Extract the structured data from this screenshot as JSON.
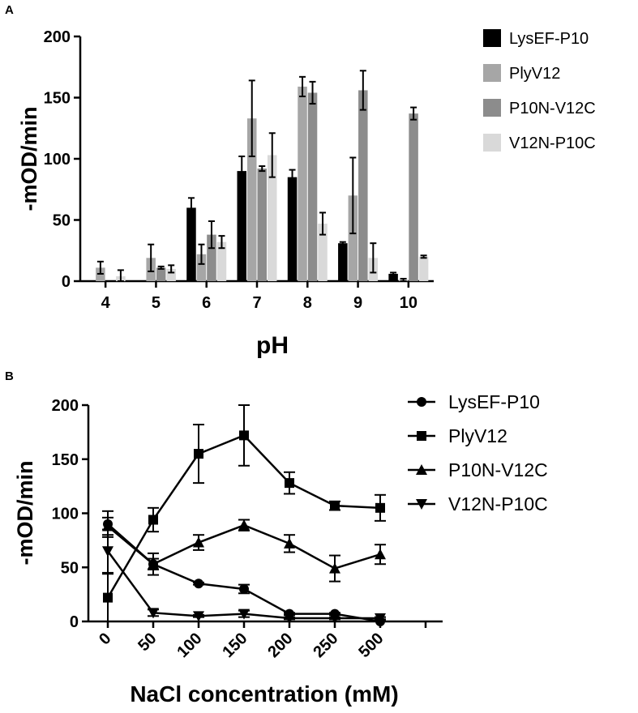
{
  "chart_data": [
    {
      "panel": "A",
      "type": "bar",
      "ylabel": "-mOD/min",
      "xlabel": "pH",
      "categories": [
        "4",
        "5",
        "6",
        "7",
        "8",
        "9",
        "10"
      ],
      "ylim": [
        0,
        200
      ],
      "yticks": [
        0,
        50,
        100,
        150,
        200
      ],
      "legend_position": "top-right",
      "series": [
        {
          "name": "LysEF-P10",
          "color": "#000000",
          "values": [
            0,
            0,
            60,
            90,
            85,
            31,
            6
          ],
          "errors": [
            0,
            0,
            8,
            12,
            6,
            1,
            1
          ]
        },
        {
          "name": "PlyV12",
          "color": "#a6a6a6",
          "values": [
            11,
            19,
            22,
            133,
            159,
            70,
            1
          ],
          "errors": [
            5,
            11,
            8,
            31,
            8,
            31,
            1
          ]
        },
        {
          "name": "P10N-V12C",
          "color": "#8c8c8c",
          "values": [
            0,
            11,
            38,
            92,
            154,
            156,
            137
          ],
          "errors": [
            0,
            1,
            11,
            2,
            9,
            16,
            5
          ]
        },
        {
          "name": "V12N-P10C",
          "color": "#d9d9d9",
          "values": [
            4,
            10,
            32,
            103,
            47,
            19,
            20
          ],
          "errors": [
            5,
            3,
            5,
            18,
            9,
            12,
            1
          ]
        }
      ]
    },
    {
      "panel": "B",
      "type": "line",
      "ylabel": "-mOD/min",
      "xlabel": "NaCl concentration (mM)",
      "categories": [
        "0",
        "50",
        "100",
        "150",
        "200",
        "250",
        "500"
      ],
      "ylim": [
        0,
        200
      ],
      "yticks": [
        0,
        50,
        100,
        150,
        200
      ],
      "legend_position": "top-right",
      "series": [
        {
          "name": "LysEF-P10",
          "marker": "circle",
          "values": [
            90,
            53,
            35,
            30,
            7,
            7,
            0
          ],
          "errors": [
            12,
            5,
            1,
            4,
            1,
            1,
            1
          ]
        },
        {
          "name": "PlyV12",
          "marker": "square",
          "values": [
            22,
            94,
            155,
            172,
            128,
            107,
            105
          ],
          "errors": [
            22,
            11,
            27,
            28,
            10,
            4,
            12
          ]
        },
        {
          "name": "P10N-V12C",
          "marker": "triangle-up",
          "values": [
            88,
            53,
            73,
            89,
            72,
            49,
            62
          ],
          "errors": [
            8,
            10,
            7,
            5,
            8,
            12,
            9
          ]
        },
        {
          "name": "V12N-P10C",
          "marker": "triangle-down",
          "values": [
            65,
            8,
            5,
            7,
            3,
            3,
            3
          ],
          "errors": [
            20,
            3,
            1,
            3,
            1,
            1,
            1
          ]
        }
      ]
    }
  ]
}
